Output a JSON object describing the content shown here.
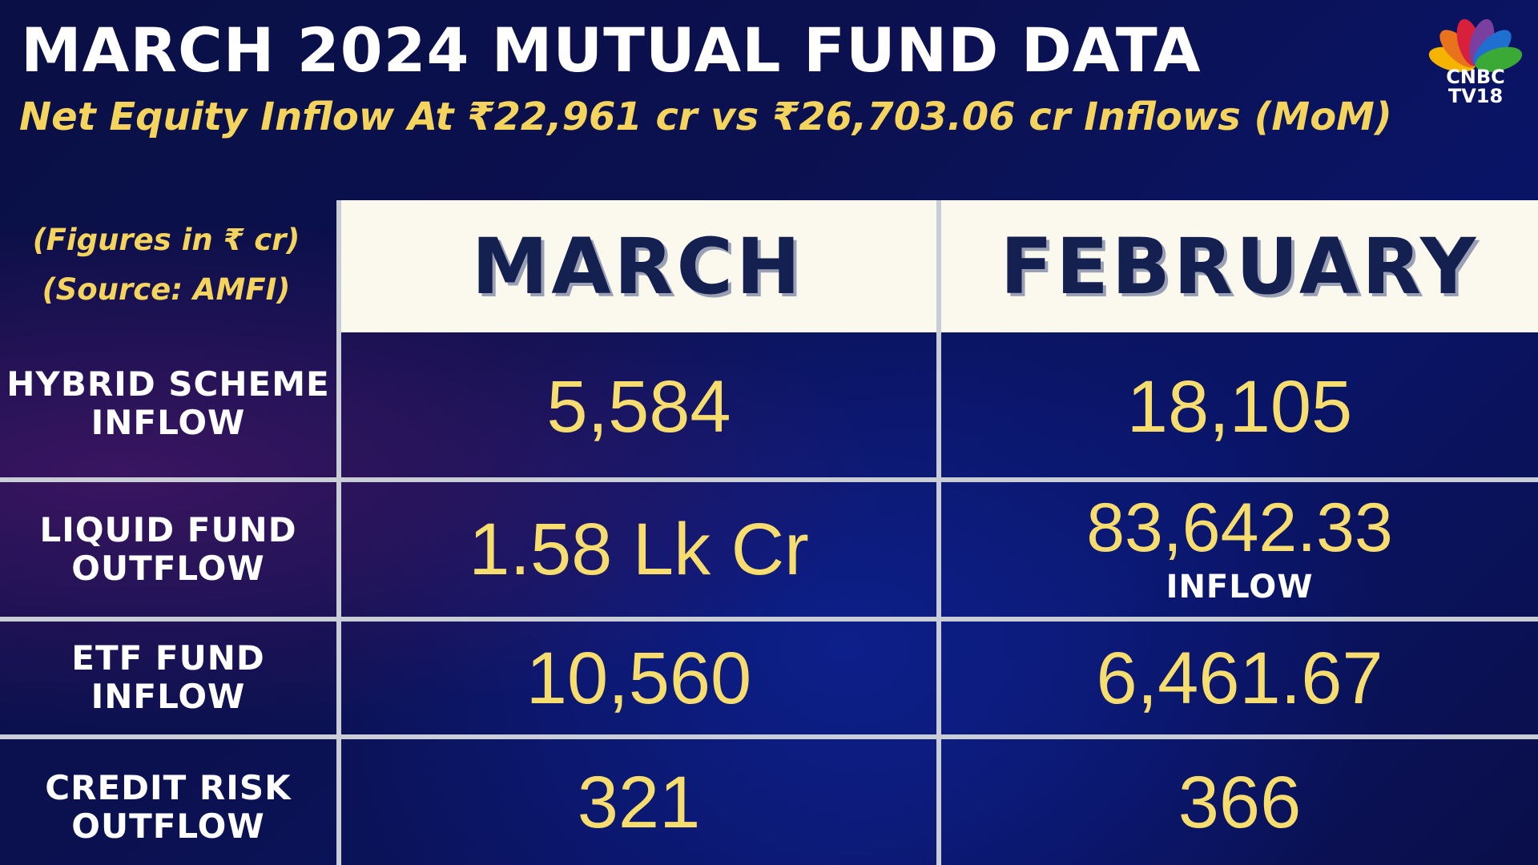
{
  "header": {
    "title": "MARCH 2024 MUTUAL FUND DATA",
    "subtitle": "Net Equity Inflow At ₹22,961 cr vs ₹26,703.06 cr Inflows (MoM)"
  },
  "logo": {
    "line1": "CNBC",
    "line2": "TV18",
    "colors": [
      "#f5b400",
      "#e8731c",
      "#d81f3c",
      "#7b3fa0",
      "#1f6fd1",
      "#3aa935"
    ]
  },
  "notes": {
    "figures": "(Figures in ₹ cr)",
    "source": "(Source: AMFI)"
  },
  "colors": {
    "accent_yellow": "#f5d45e",
    "header_bg": "#fbf8ee",
    "header_text": "#14204f",
    "grid": "#c9cdd6"
  },
  "chart_data": {
    "type": "table",
    "columns": [
      "MARCH",
      "FEBRUARY"
    ],
    "rows": [
      {
        "label_line1": "HYBRID SCHEME",
        "label_line2": "INFLOW",
        "march": "5,584",
        "february": "18,105",
        "february_note": ""
      },
      {
        "label_line1": "LIQUID FUND",
        "label_line2": "OUTFLOW",
        "march": "1.58 Lk Cr",
        "february": "83,642.33",
        "february_note": "INFLOW"
      },
      {
        "label_line1": "ETF FUND",
        "label_line2": "INFLOW",
        "march": "10,560",
        "february": "6,461.67",
        "february_note": ""
      },
      {
        "label_line1": "CREDIT RISK",
        "label_line2": "OUTFLOW",
        "march": "321",
        "february": "366",
        "february_note": ""
      }
    ]
  }
}
